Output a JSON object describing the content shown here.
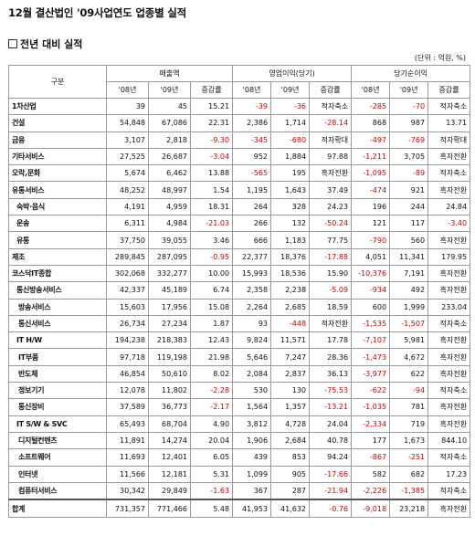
{
  "title": "12월 결산법인 '09사업연도 업종별 실적",
  "subtitle": "전년 대비 실적",
  "unit": "(단위 : 억원, %)",
  "headers": {
    "category": "구분",
    "sales": "매출액",
    "op": "영업이익(당기)",
    "net": "당기순이익",
    "y08": "'08년",
    "y09": "'09년",
    "rate": "증감률"
  },
  "rows": [
    {
      "label": "1차산업",
      "indent": 0,
      "cells": [
        "39",
        "45",
        "15.21",
        "-39",
        "-36",
        "적자축소",
        "-285",
        "-70",
        "적자축소"
      ]
    },
    {
      "label": "건설",
      "indent": 0,
      "cells": [
        "54,848",
        "67,086",
        "22.31",
        "2,386",
        "1,714",
        "-28.14",
        "868",
        "987",
        "13.71"
      ]
    },
    {
      "label": "금융",
      "indent": 0,
      "cells": [
        "3,107",
        "2,818",
        "-9.30",
        "-345",
        "-680",
        "적자확대",
        "-497",
        "-769",
        "적자확대"
      ]
    },
    {
      "label": "기타서비스",
      "indent": 0,
      "cells": [
        "27,525",
        "26,687",
        "-3.04",
        "952",
        "1,884",
        "97.88",
        "-1,211",
        "3,705",
        "흑자전환"
      ]
    },
    {
      "label": "오락,문화",
      "indent": 0,
      "cells": [
        "5,674",
        "6,462",
        "13.88",
        "-565",
        "195",
        "흑자전환",
        "-1,095",
        "-89",
        "적자축소"
      ]
    },
    {
      "label": "유통서비스",
      "indent": 0,
      "cells": [
        "48,252",
        "48,997",
        "1.54",
        "1,195",
        "1,643",
        "37.49",
        "-474",
        "921",
        "흑자전환"
      ]
    },
    {
      "label": "숙박·음식",
      "indent": 1,
      "cells": [
        "4,191",
        "4,959",
        "18.31",
        "264",
        "328",
        "24.23",
        "196",
        "244",
        "24.84"
      ]
    },
    {
      "label": "운송",
      "indent": 1,
      "cells": [
        "6,311",
        "4,984",
        "-21.03",
        "266",
        "132",
        "-50.24",
        "121",
        "117",
        "-3.40"
      ]
    },
    {
      "label": "유통",
      "indent": 1,
      "cells": [
        "37,750",
        "39,055",
        "3.46",
        "666",
        "1,183",
        "77.75",
        "-790",
        "560",
        "흑자전환"
      ]
    },
    {
      "label": "제조",
      "indent": 0,
      "cells": [
        "289,845",
        "287,095",
        "-0.95",
        "22,377",
        "18,376",
        "-17.88",
        "4,051",
        "11,341",
        "179.95"
      ]
    },
    {
      "label": "코스닥IT종합",
      "indent": 0,
      "cells": [
        "302,068",
        "332,277",
        "10.00",
        "15,993",
        "18,536",
        "15.90",
        "-10,376",
        "7,191",
        "흑자전환"
      ]
    },
    {
      "label": "통신방송서비스",
      "indent": 1,
      "cells": [
        "42,337",
        "45,189",
        "6.74",
        "2,358",
        "2,238",
        "-5.09",
        "-934",
        "492",
        "흑자전환"
      ]
    },
    {
      "label": "방송서비스",
      "indent": 2,
      "cells": [
        "15,603",
        "17,956",
        "15.08",
        "2,264",
        "2,685",
        "18.59",
        "600",
        "1,999",
        "233.04"
      ]
    },
    {
      "label": "통신서비스",
      "indent": 2,
      "cells": [
        "26,734",
        "27,234",
        "1.87",
        "93",
        "-448",
        "적자전환",
        "-1,535",
        "-1,507",
        "적자축소"
      ]
    },
    {
      "label": "IT H/W",
      "indent": 1,
      "cells": [
        "194,238",
        "218,383",
        "12.43",
        "9,824",
        "11,571",
        "17.78",
        "-7,107",
        "5,981",
        "흑자전환"
      ]
    },
    {
      "label": "IT부품",
      "indent": 2,
      "cells": [
        "97,718",
        "119,198",
        "21.98",
        "5,646",
        "7,247",
        "28.36",
        "-1,473",
        "4,672",
        "흑자전환"
      ]
    },
    {
      "label": "반도체",
      "indent": 2,
      "cells": [
        "46,854",
        "50,610",
        "8.02",
        "2,084",
        "2,837",
        "36.13",
        "-3,977",
        "622",
        "흑자전환"
      ]
    },
    {
      "label": "정보기기",
      "indent": 2,
      "cells": [
        "12,078",
        "11,802",
        "-2.28",
        "530",
        "130",
        "-75.53",
        "-622",
        "-94",
        "적자축소"
      ]
    },
    {
      "label": "통신장비",
      "indent": 2,
      "cells": [
        "37,589",
        "36,773",
        "-2.17",
        "1,564",
        "1,357",
        "-13.21",
        "-1,035",
        "781",
        "흑자전환"
      ]
    },
    {
      "label": "IT S/W & SVC",
      "indent": 1,
      "cells": [
        "65,493",
        "68,704",
        "4.90",
        "3,812",
        "4,728",
        "24.04",
        "-2,334",
        "719",
        "흑자전환"
      ]
    },
    {
      "label": "디지털컨텐츠",
      "indent": 2,
      "cells": [
        "11,891",
        "14,274",
        "20.04",
        "1,906",
        "2,684",
        "40.78",
        "177",
        "1,673",
        "844.10"
      ]
    },
    {
      "label": "소프트웨어",
      "indent": 2,
      "cells": [
        "11,693",
        "12,401",
        "6.05",
        "439",
        "853",
        "94.24",
        "-867",
        "-251",
        "적자축소"
      ]
    },
    {
      "label": "인터넷",
      "indent": 2,
      "cells": [
        "11,566",
        "12,181",
        "5.31",
        "1,099",
        "905",
        "-17.66",
        "582",
        "682",
        "17.23"
      ]
    },
    {
      "label": "컴퓨터서비스",
      "indent": 2,
      "cells": [
        "30,342",
        "29,849",
        "-1.63",
        "367",
        "287",
        "-21.94",
        "-2,226",
        "-1,385",
        "적자축소"
      ]
    },
    {
      "label": "합계",
      "indent": 0,
      "total": true,
      "cells": [
        "731,357",
        "771,466",
        "5.48",
        "41,953",
        "41,632",
        "-0.76",
        "-9,018",
        "23,218",
        "흑자전환"
      ]
    }
  ],
  "colors": {
    "negative": "#d10000",
    "text": "#111111",
    "border": "#9a9a9a"
  }
}
